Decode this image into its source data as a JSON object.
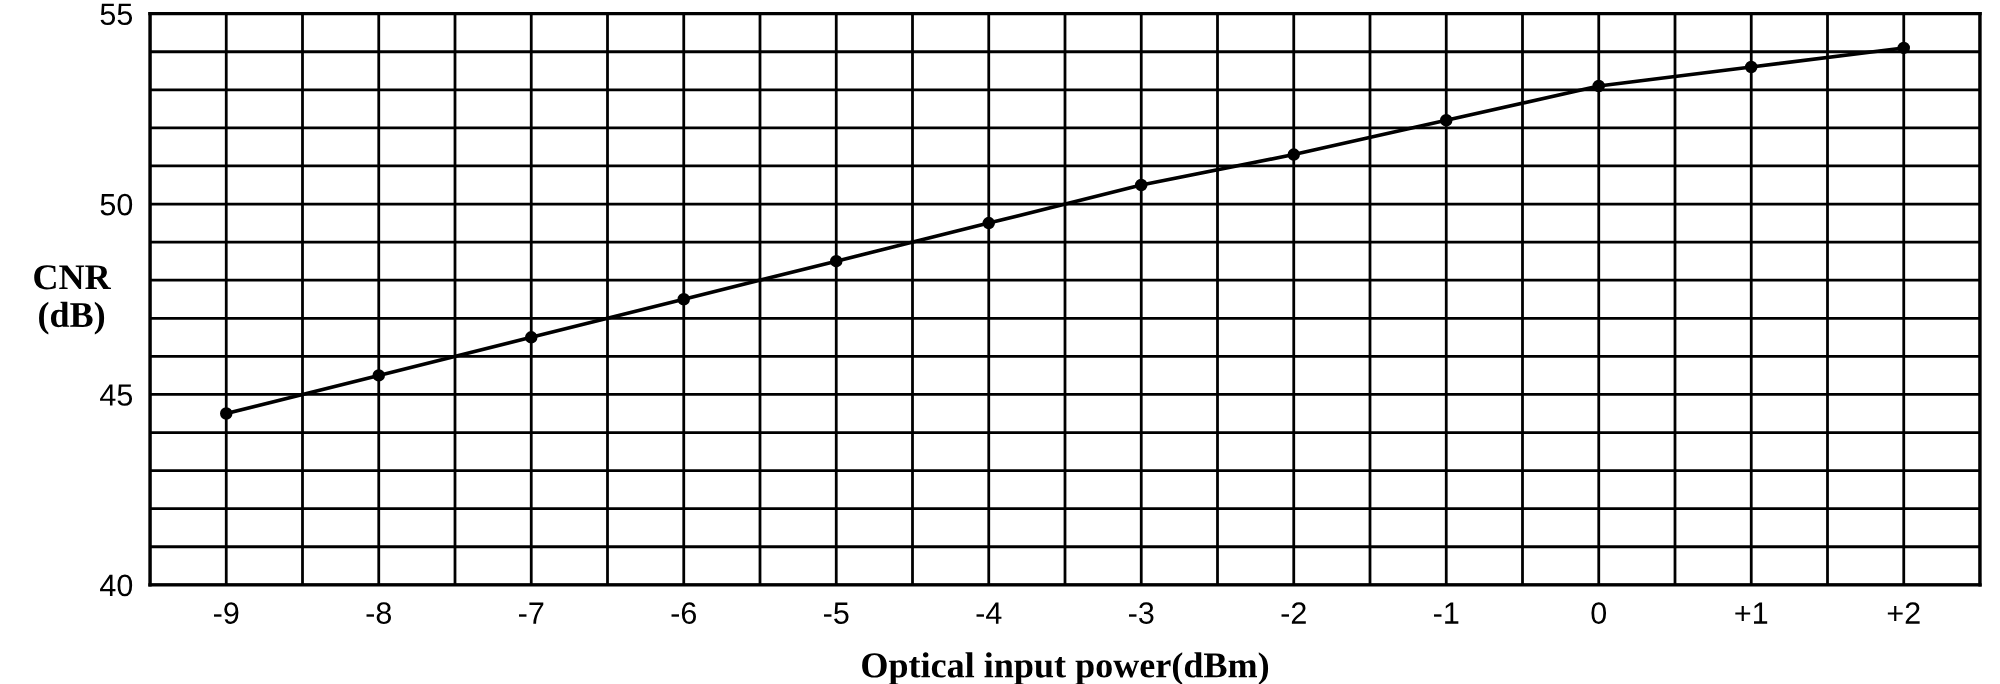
{
  "chart_data": {
    "type": "line",
    "xlabel": "Optical input power(dBm)",
    "ylabel": "CNR\n(dB)",
    "x": [
      -9,
      -8,
      -7,
      -6,
      -5,
      -4,
      -3,
      -2,
      -1,
      0,
      1,
      2
    ],
    "series": [
      {
        "color": "#000000",
        "values": [
          44.5,
          45.5,
          46.5,
          47.5,
          48.5,
          49.5,
          50.5,
          51.3,
          52.2,
          53.1,
          53.6,
          54.1
        ]
      }
    ],
    "xlim": [
      -9.5,
      2.5
    ],
    "xticks": [
      {
        "value": -9.5,
        "label": null
      },
      -9,
      {
        "value": -8.5,
        "label": null
      },
      -8,
      {
        "value": -7.5,
        "label": null
      },
      -7,
      {
        "value": -6.5,
        "label": null
      },
      -6,
      {
        "value": -5.5,
        "label": null
      },
      -5,
      {
        "value": -4.5,
        "label": null
      },
      -4,
      {
        "value": -3.5,
        "label": null
      },
      -3,
      {
        "value": -2.5,
        "label": null
      },
      -2,
      {
        "value": -1.5,
        "label": null
      },
      -1,
      {
        "value": -0.5,
        "label": null
      },
      0,
      {
        "value": 0.5,
        "label": null
      },
      {
        "value": 1,
        "label": "+1"
      },
      {
        "value": 1.5,
        "label": null
      },
      {
        "value": 2,
        "label": "+2"
      },
      {
        "value": 2.5,
        "label": null
      }
    ],
    "ylim": [
      40,
      55
    ],
    "yticks": [
      40,
      {
        "value": 41,
        "label": null
      },
      {
        "value": 42,
        "label": null
      },
      {
        "value": 43,
        "label": null
      },
      {
        "value": 44,
        "label": null
      },
      45,
      {
        "value": 46,
        "label": null
      },
      {
        "value": 47,
        "label": null
      },
      {
        "value": 48,
        "label": null
      },
      {
        "value": 49,
        "label": null
      },
      50,
      {
        "value": 51,
        "label": null
      },
      {
        "value": 52,
        "label": null
      },
      {
        "value": 53,
        "label": null
      },
      {
        "value": 54,
        "label": null
      },
      55
    ],
    "grid": true,
    "marker": "circle",
    "line_style": "solid"
  }
}
